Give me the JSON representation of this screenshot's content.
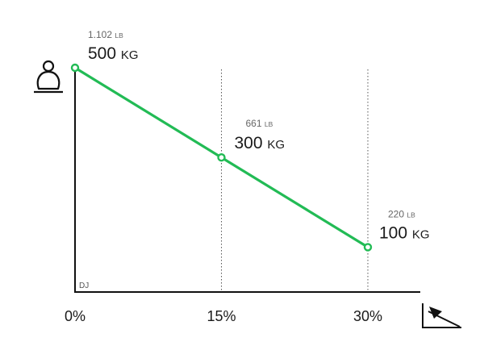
{
  "chart_data": {
    "type": "line",
    "x": [
      0,
      15,
      30
    ],
    "x_tick_labels": [
      "0%",
      "15%",
      "30%"
    ],
    "xlim": [
      0,
      30
    ],
    "ylim": [
      0,
      500
    ],
    "grid": "dotted vertical lines at 15% and 30%",
    "series": [
      {
        "values": [
          500,
          300,
          100
        ],
        "color": "#22bb55",
        "point_labels": [
          {
            "lb_value": "1.102",
            "lb_unit": "LB",
            "kg_value": "500",
            "kg_unit": "KG"
          },
          {
            "lb_value": "661",
            "lb_unit": "LB",
            "kg_value": "300",
            "kg_unit": "KG"
          },
          {
            "lb_value": "220",
            "lb_unit": "LB",
            "kg_value": "100",
            "kg_unit": "KG"
          }
        ]
      }
    ],
    "corner_label": "DJ",
    "y_axis_icon": "weight-load-icon",
    "x_axis_icon": "slope-incline-icon"
  }
}
